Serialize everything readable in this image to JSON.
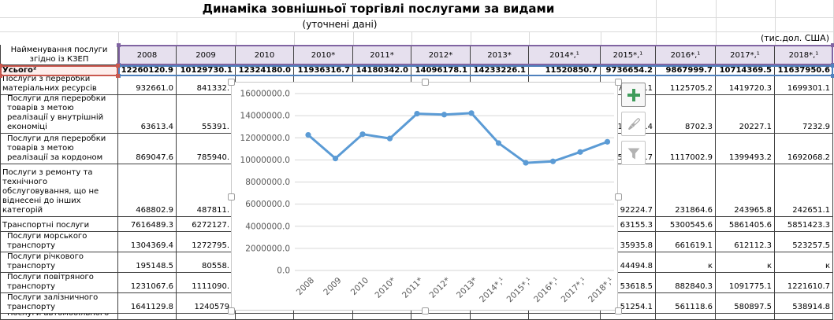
{
  "title": "Динаміка зовнішньої торгівлі послугами за видами",
  "subtitle": "(уточнені дані)",
  "units_note": "(тис.дол. США)",
  "table": {
    "corner_header": "Найменування послуги згідно із КЗЕП",
    "columns": [
      "2008",
      "2009",
      "2010",
      "2010*",
      "2011*",
      "2012*",
      "2013*",
      "2014*,¹",
      "2015*,¹",
      "2016*,¹",
      "2017*,¹",
      "2018*,¹"
    ],
    "total_row": {
      "label": "Усього²",
      "values": [
        "12260120.9",
        "10129730.1",
        "12324180.0",
        "11936316.7",
        "14180342.0",
        "14096178.1",
        "14233226.1",
        "11520850.7",
        "9736654.2",
        "9867999.7",
        "10714369.5",
        "11637950.6"
      ]
    },
    "rows": [
      {
        "label": "Послуги з переробки матеріальних ресурсів",
        "indent": false,
        "values": [
          "932661.0",
          "841332.",
          "",
          "",
          "",
          "",
          "",
          "",
          "78       .1",
          "1125705.2",
          "1419720.3",
          "1699301.1"
        ]
      },
      {
        "label": "Послуги для переробки товарів з метою реалізації у внутрішній економіці",
        "indent": true,
        "values": [
          "63613.4",
          "55391.",
          "",
          "",
          "",
          "",
          "",
          "",
          "18       .4",
          "8702.3",
          "20227.1",
          "7232.9"
        ]
      },
      {
        "label": "Послуги для переробки товарів з метою реалізації за кордоном",
        "indent": true,
        "values": [
          "869047.6",
          "785940.",
          "",
          "",
          "",
          "",
          "",
          "",
          "59       .7",
          "1117002.9",
          "1399493.2",
          "1692068.2"
        ]
      },
      {
        "label": "Послуги з ремонту та технічного обслуговування, що не віднесені до інших категорій",
        "indent": false,
        "values": [
          "468802.9",
          "487811.",
          "",
          "",
          "",
          "",
          "",
          "",
          "92224.7",
          "231864.6",
          "243965.8",
          "242651.1"
        ]
      },
      {
        "label": "Транспортні послуги",
        "indent": false,
        "values": [
          "7616489.3",
          "6272127.",
          "",
          "",
          "",
          "",
          "",
          "",
          "63155.3",
          "5300545.6",
          "5861405.6",
          "5851423.3"
        ]
      },
      {
        "label": "Послуги морського транспорту",
        "indent": true,
        "values": [
          "1304369.4",
          "1272795.",
          "",
          "",
          "",
          "",
          "",
          "",
          "35935.8",
          "661619.1",
          "612112.3",
          "523257.5"
        ]
      },
      {
        "label": "Послуги річкового транспорту",
        "indent": true,
        "values": [
          "195148.5",
          "80558.",
          "",
          "",
          "",
          "",
          "",
          "",
          "44494.8",
          "к",
          "к",
          "к"
        ]
      },
      {
        "label": "Послуги повітряного транспорту",
        "indent": true,
        "values": [
          "1231067.6",
          "1111090.",
          "",
          "",
          "",
          "",
          "",
          "",
          "53618.5",
          "882840.3",
          "1091775.1",
          "1221610.7"
        ]
      },
      {
        "label": "Послуги залізничного транспорту",
        "indent": true,
        "values": [
          "1641129.8",
          "1240579",
          "",
          "",
          "",
          "",
          "",
          "",
          "51254.1",
          "561118.6",
          "580897.5",
          "538914.8"
        ]
      },
      {
        "label": "Послуги автомобільного",
        "indent": true,
        "values": [
          "",
          "",
          "",
          "",
          "",
          "",
          "",
          "",
          "",
          "",
          "",
          ""
        ]
      }
    ]
  },
  "chart_data": {
    "type": "line",
    "title": "",
    "xlabel": "",
    "ylabel": "",
    "categories": [
      "2008",
      "2009",
      "2010",
      "2010*",
      "2011*",
      "2012*",
      "2013*",
      "2014*,¹",
      "2015*,¹",
      "2016*,¹",
      "2017*,¹",
      "2018*,¹"
    ],
    "series": [
      {
        "name": "Усього",
        "values": [
          12260120.9,
          10129730.1,
          12324180.0,
          11936316.7,
          14180342.0,
          14096178.1,
          14233226.1,
          11520850.7,
          9736654.2,
          9867999.7,
          10714369.5,
          11637950.6
        ]
      }
    ],
    "ylim": [
      0,
      16000000
    ],
    "ytick_step": 2000000,
    "ytick_format": "one_decimal",
    "grid": true,
    "legend": "none",
    "marker": "circle"
  },
  "chart_tools": {
    "buttons": [
      {
        "icon": "plus-icon"
      },
      {
        "icon": "paintbrush-icon"
      },
      {
        "icon": "funnel-icon"
      }
    ]
  },
  "colors": {
    "line": "#5B9BD5",
    "grid": "#D6D6D6",
    "axis_text": "#595959",
    "category_outline": "#8064A2",
    "category_fill": "#E6E0EE",
    "values_outline": "#4F81BD",
    "series_name_outline": "#C9584E",
    "series_name_fill": "#FDEEEC",
    "plus_icon": "#3F9C5B",
    "tool_icon": "#ABABAB"
  }
}
